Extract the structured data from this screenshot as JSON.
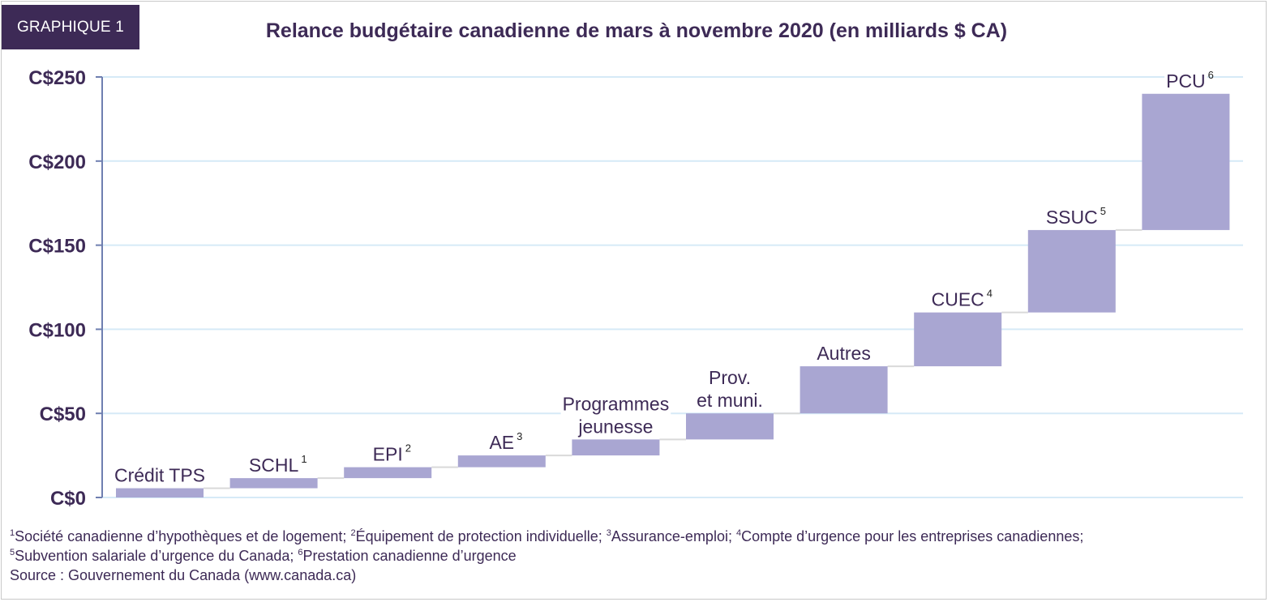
{
  "badge": "GRAPHIQUE 1",
  "colors": {
    "bar": "#a9a6d2",
    "grid": "#d6eaf7",
    "axis": "#6f7fb0",
    "tick_text": "#3d2a56",
    "label_text": "#3d2a56",
    "badge_bg": "#3d2a56"
  },
  "chart_data": {
    "type": "bar",
    "subtype": "waterfall",
    "title": "Relance budgétaire canadienne de mars à novembre 2020 (en milliards $ CA)",
    "xlabel": "",
    "ylabel": "",
    "ylim": [
      0,
      250
    ],
    "yticks": [
      0,
      50,
      100,
      150,
      200,
      250
    ],
    "ytick_labels": [
      "C$0",
      "C$50",
      "C$100",
      "C$150",
      "C$200",
      "C$250"
    ],
    "grid": true,
    "categories": [
      "Crédit TPS",
      "SCHL",
      "EPI",
      "AE",
      "Programmes jeunesse",
      "Prov. et muni.",
      "Autres",
      "CUEC",
      "SSUC",
      "PCU"
    ],
    "label_lines": [
      [
        "Crédit TPS"
      ],
      [
        "SCHL"
      ],
      [
        "EPI"
      ],
      [
        "AE"
      ],
      [
        "Programmes",
        "jeunesse"
      ],
      [
        "Prov.",
        "et muni."
      ],
      [
        "Autres"
      ],
      [
        "CUEC"
      ],
      [
        "SSUC"
      ],
      [
        "PCU"
      ]
    ],
    "footnote_marks": [
      "",
      "1",
      "2",
      "3",
      "",
      "",
      "",
      "4",
      "5",
      "6"
    ],
    "start": [
      0,
      5.5,
      11.5,
      18,
      25,
      34.5,
      50,
      78,
      110,
      159
    ],
    "end": [
      5.5,
      11.5,
      18,
      25,
      34.5,
      50,
      78,
      110,
      159,
      240
    ],
    "values": [
      5.5,
      6,
      6.5,
      7,
      9.5,
      15.5,
      28,
      32,
      49,
      81
    ]
  },
  "footnotes": {
    "line1": [
      {
        "mark": "1",
        "text": "Société canadienne d’hypothèques et de logement; "
      },
      {
        "mark": "2",
        "text": "Équipement de protection individuelle; "
      },
      {
        "mark": "3",
        "text": "Assurance-emploi; "
      },
      {
        "mark": "4",
        "text": "Compte d’urgence pour les entreprises canadiennes;"
      }
    ],
    "line2": [
      {
        "mark": "5",
        "text": "Subvention salariale d’urgence du Canada; "
      },
      {
        "mark": "6",
        "text": "Prestation canadienne d’urgence"
      }
    ],
    "source": "Source : Gouvernement du Canada (www.canada.ca)"
  }
}
